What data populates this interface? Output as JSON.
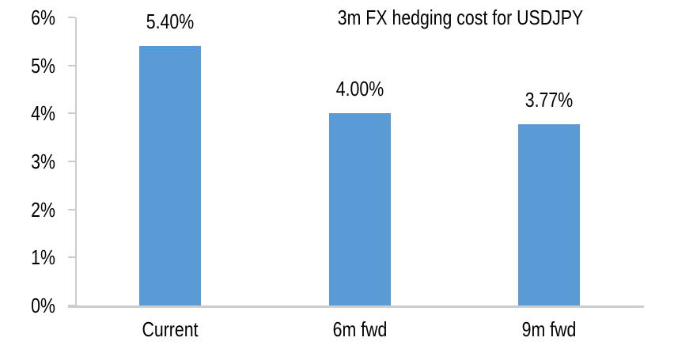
{
  "chart_data": {
    "type": "bar",
    "title": "3m FX hedging cost for USDJPY",
    "categories": [
      "Current",
      "6m fwd",
      "9m fwd"
    ],
    "values": [
      5.4,
      4.0,
      3.77
    ],
    "data_labels": [
      "5.40%",
      "4.00%",
      "3.77%"
    ],
    "ylim": [
      0,
      6
    ],
    "yticks": [
      {
        "value": 0,
        "label": "0%"
      },
      {
        "value": 1,
        "label": "1%"
      },
      {
        "value": 2,
        "label": "2%"
      },
      {
        "value": 3,
        "label": "3%"
      },
      {
        "value": 4,
        "label": "4%"
      },
      {
        "value": 5,
        "label": "5%"
      },
      {
        "value": 6,
        "label": "6%"
      }
    ],
    "xlabel": "",
    "ylabel": "",
    "grid": false,
    "legend": "none",
    "bar_color": "#5B9BD5",
    "axis_color": "#CCCCCC",
    "text_color": "#000000",
    "background": "#FFFFFF"
  }
}
